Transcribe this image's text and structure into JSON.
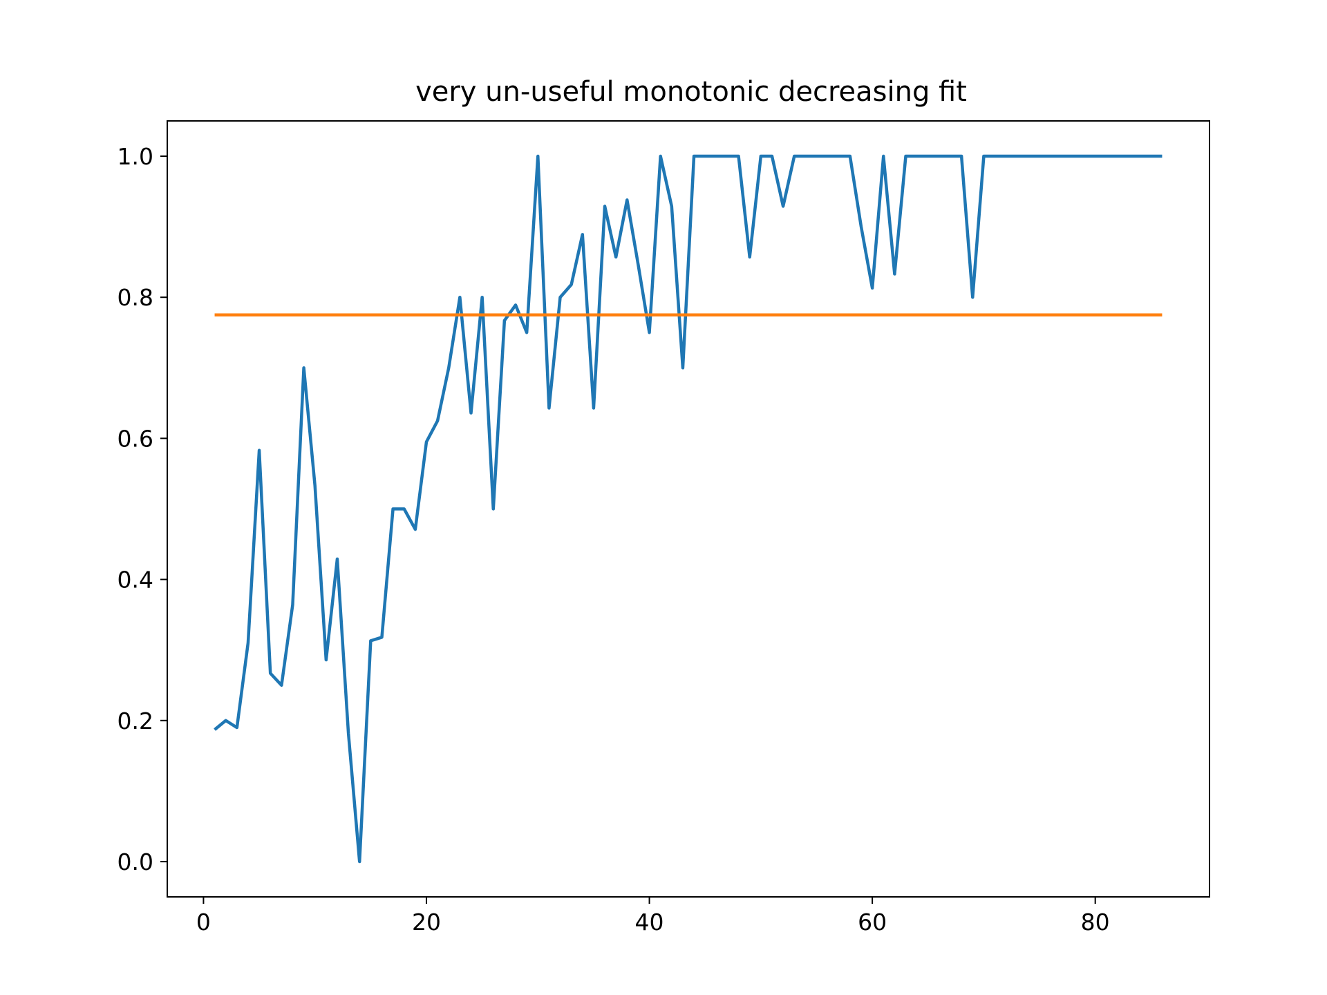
{
  "chart_data": {
    "type": "line",
    "title": "very un-useful monotonic decreasing fit",
    "xlabel": "",
    "ylabel": "",
    "xlim": [
      -3.25,
      90.25
    ],
    "ylim": [
      -0.05,
      1.05
    ],
    "x_ticks": [
      0,
      20,
      40,
      60,
      80
    ],
    "x_tick_labels": [
      "0",
      "20",
      "40",
      "60",
      "80"
    ],
    "y_ticks": [
      0.0,
      0.2,
      0.4,
      0.6,
      0.8,
      1.0
    ],
    "y_tick_labels": [
      "0.0",
      "0.2",
      "0.4",
      "0.6",
      "0.8",
      "1.0"
    ],
    "grid": false,
    "legend": "none",
    "series": [
      {
        "color": "#1f77b4",
        "x": [
          1,
          2,
          3,
          4,
          5,
          6,
          7,
          8,
          9,
          10,
          11,
          12,
          13,
          14,
          15,
          16,
          17,
          18,
          19,
          20,
          21,
          22,
          23,
          24,
          25,
          26,
          27,
          28,
          29,
          30,
          31,
          32,
          33,
          34,
          35,
          36,
          37,
          38,
          39,
          40,
          41,
          42,
          43,
          44,
          45,
          46,
          47,
          48,
          49,
          50,
          51,
          52,
          53,
          54,
          55,
          56,
          57,
          58,
          59,
          60,
          61,
          62,
          63,
          64,
          65,
          66,
          67,
          68,
          69,
          70,
          71,
          72,
          73,
          74,
          75,
          76,
          77,
          78,
          79,
          80,
          81,
          82,
          83,
          84,
          85,
          86
        ],
        "y": [
          0.187,
          0.2,
          0.19,
          0.31,
          0.583,
          0.267,
          0.25,
          0.364,
          0.7,
          0.533,
          0.286,
          0.429,
          0.182,
          0.0,
          0.313,
          0.318,
          0.5,
          0.5,
          0.471,
          0.595,
          0.625,
          0.7,
          0.8,
          0.636,
          0.8,
          0.5,
          0.767,
          0.789,
          0.75,
          1.0,
          0.643,
          0.8,
          0.818,
          0.889,
          0.643,
          0.929,
          0.857,
          0.938,
          0.846,
          0.75,
          1.0,
          0.929,
          0.7,
          1.0,
          1.0,
          1.0,
          1.0,
          1.0,
          0.857,
          1.0,
          1.0,
          0.929,
          1.0,
          1.0,
          1.0,
          1.0,
          1.0,
          1.0,
          0.9,
          0.813,
          1.0,
          0.833,
          1.0,
          1.0,
          1.0,
          1.0,
          1.0,
          1.0,
          0.8,
          1.0,
          1.0,
          1.0,
          1.0,
          1.0,
          1.0,
          1.0,
          1.0,
          1.0,
          1.0,
          1.0,
          1.0,
          1.0,
          1.0,
          1.0,
          1.0,
          1.0
        ]
      },
      {
        "color": "#ff7f0e",
        "x": [
          1,
          86
        ],
        "y": [
          0.775,
          0.775
        ]
      }
    ]
  }
}
